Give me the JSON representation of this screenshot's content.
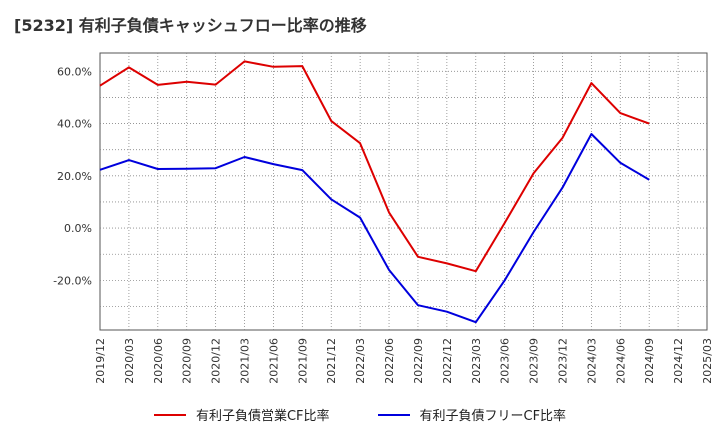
{
  "chart_data": {
    "type": "line",
    "title": "[5232]  有利子負債キャッシュフロー比率の推移",
    "xlabel": "",
    "ylabel": "",
    "x": [
      "2019/12",
      "2020/03",
      "2020/06",
      "2020/09",
      "2020/12",
      "2021/03",
      "2021/06",
      "2021/09",
      "2021/12",
      "2022/03",
      "2022/06",
      "2022/09",
      "2022/12",
      "2023/03",
      "2023/06",
      "2023/09",
      "2023/12",
      "2024/03",
      "2024/06",
      "2024/09",
      "2024/12",
      "2025/03"
    ],
    "ylim": [
      -39,
      67
    ],
    "yticks": [
      -20,
      0,
      20,
      40,
      60
    ],
    "ytick_labels": [
      "-20.0%",
      "0.0%",
      "20.0%",
      "40.0%",
      "60.0%"
    ],
    "grid": true,
    "legend_position": "bottom",
    "series": [
      {
        "name": "有利子負債営業CF比率",
        "color": "#dd0000",
        "values": [
          54.5,
          61.5,
          54.8,
          56.0,
          54.9,
          63.8,
          61.7,
          62.0,
          41.0,
          32.5,
          6.0,
          -11.0,
          -13.5,
          -16.5,
          2.0,
          21.0,
          34.5,
          55.5,
          44.0,
          40.0,
          null,
          null
        ]
      },
      {
        "name": "有利子負債フリーCF比率",
        "color": "#0000dd",
        "values": [
          22.3,
          26.0,
          22.6,
          22.7,
          22.9,
          27.2,
          24.5,
          22.2,
          11.0,
          4.0,
          -16.0,
          -29.5,
          -32.0,
          -36.0,
          -20.0,
          -1.5,
          15.5,
          36.0,
          25.0,
          18.5,
          null,
          null
        ]
      }
    ]
  }
}
